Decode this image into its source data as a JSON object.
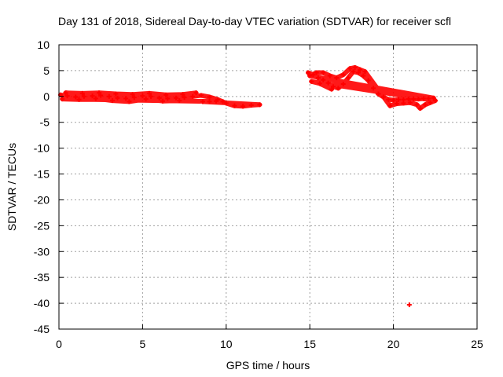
{
  "chart_data": {
    "type": "scatter",
    "title": "Day 131 of 2018, Sidereal Day-to-day VTEC variation (SDTVAR) for receiver scfl",
    "xlabel": "GPS time / hours",
    "ylabel": "SDTVAR / TECUs",
    "xlim": [
      0,
      25
    ],
    "ylim": [
      -45,
      10
    ],
    "x_ticks": [
      0,
      5,
      10,
      15,
      20,
      25
    ],
    "y_ticks": [
      10,
      5,
      0,
      -5,
      -10,
      -15,
      -20,
      -25,
      -30,
      -35,
      -40,
      -45
    ],
    "grid": true,
    "legend": "none",
    "marker_color": "#ff0000",
    "series": [
      {
        "points": [
          [
            0.1,
            0.3
          ],
          [
            0.5,
            0.1
          ],
          [
            1.0,
            -0.1
          ],
          [
            1.5,
            0.0
          ],
          [
            2.0,
            0.1
          ],
          [
            2.5,
            0.2
          ],
          [
            3.0,
            0.0
          ],
          [
            3.5,
            -0.3
          ],
          [
            4.0,
            -0.4
          ],
          [
            4.5,
            -0.2
          ],
          [
            5.0,
            0.1
          ],
          [
            5.5,
            0.0
          ],
          [
            6.0,
            -0.3
          ],
          [
            6.5,
            -0.4
          ],
          [
            7.0,
            -0.3
          ],
          [
            7.5,
            -0.2
          ],
          [
            8.0,
            0.0
          ],
          [
            8.5,
            0.2
          ],
          [
            9.0,
            -0.1
          ],
          [
            9.5,
            -0.6
          ],
          [
            10.0,
            -1.3
          ],
          [
            10.5,
            -1.8
          ],
          [
            11.0,
            -1.9
          ],
          [
            11.5,
            -1.7
          ],
          [
            12.0,
            -1.6
          ],
          [
            8.6,
            -1.0
          ],
          [
            9.0,
            -1.0
          ],
          [
            9.4,
            -0.9
          ],
          [
            9.8,
            -1.0
          ],
          [
            0.2,
            -0.5
          ],
          [
            1.2,
            -0.6
          ],
          [
            2.2,
            -0.4
          ],
          [
            3.2,
            -0.8
          ],
          [
            4.2,
            -1.0
          ],
          [
            5.2,
            -0.5
          ],
          [
            6.2,
            -0.9
          ],
          [
            7.2,
            -0.8
          ],
          [
            0.4,
            0.7
          ],
          [
            1.4,
            0.6
          ],
          [
            2.4,
            0.7
          ],
          [
            3.4,
            0.5
          ],
          [
            4.4,
            0.4
          ],
          [
            5.4,
            0.6
          ],
          [
            6.4,
            0.3
          ],
          [
            7.4,
            0.4
          ],
          [
            8.2,
            0.7
          ]
        ]
      },
      {
        "points": [
          [
            14.9,
            4.6
          ],
          [
            15.2,
            4.2
          ],
          [
            15.5,
            3.6
          ],
          [
            15.8,
            3.2
          ],
          [
            16.1,
            2.6
          ],
          [
            16.4,
            1.9
          ],
          [
            16.7,
            1.6
          ],
          [
            17.0,
            2.4
          ],
          [
            17.3,
            3.6
          ],
          [
            17.6,
            4.8
          ],
          [
            17.9,
            4.6
          ],
          [
            18.2,
            4.0
          ],
          [
            18.5,
            3.1
          ],
          [
            18.8,
            1.6
          ],
          [
            19.1,
            0.5
          ],
          [
            19.4,
            -0.1
          ],
          [
            19.7,
            -0.6
          ],
          [
            20.0,
            -0.7
          ],
          [
            20.3,
            -0.6
          ],
          [
            20.6,
            -0.6
          ],
          [
            20.9,
            -0.5
          ],
          [
            21.2,
            -0.5
          ],
          [
            21.5,
            -0.5
          ],
          [
            21.8,
            -0.4
          ],
          [
            22.1,
            -0.4
          ],
          [
            22.4,
            -0.3
          ],
          [
            15.0,
            4.0
          ],
          [
            15.4,
            4.6
          ],
          [
            15.8,
            4.6
          ],
          [
            16.2,
            4.0
          ],
          [
            16.6,
            3.6
          ],
          [
            17.0,
            4.2
          ],
          [
            17.4,
            5.4
          ],
          [
            17.7,
            5.6
          ],
          [
            18.0,
            5.2
          ],
          [
            18.3,
            4.8
          ],
          [
            19.8,
            -1.8
          ],
          [
            20.2,
            -1.4
          ],
          [
            20.6,
            -1.3
          ],
          [
            21.0,
            -1.2
          ],
          [
            21.4,
            -1.6
          ],
          [
            21.6,
            -2.3
          ],
          [
            21.9,
            -1.6
          ],
          [
            22.2,
            -1.2
          ],
          [
            22.5,
            -0.8
          ],
          [
            15.1,
            2.9
          ],
          [
            15.6,
            2.5
          ],
          [
            16.3,
            1.4
          ]
        ]
      },
      {
        "points": [
          [
            20.95,
            -40.3
          ]
        ]
      }
    ]
  }
}
